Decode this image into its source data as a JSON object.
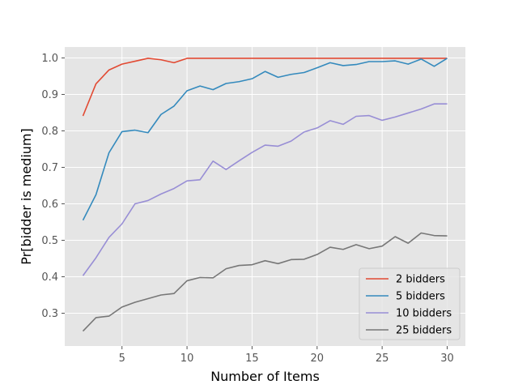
{
  "chart_data": {
    "type": "line",
    "title": "",
    "xlabel": "Number of Items",
    "ylabel": "Pr[bidder is medium]",
    "xlim": [
      0.6,
      31.4
    ],
    "ylim": [
      0.21,
      1.03
    ],
    "xticks": [
      5,
      10,
      15,
      20,
      25,
      30
    ],
    "yticks": [
      0.3,
      0.4,
      0.5,
      0.6,
      0.7,
      0.8,
      0.9,
      1.0
    ],
    "ytick_labels": [
      "0.3",
      "0.4",
      "0.5",
      "0.6",
      "0.7",
      "0.8",
      "0.9",
      "1.0"
    ],
    "grid": true,
    "legend_position": "lower-right",
    "x": [
      2,
      3,
      4,
      5,
      6,
      7,
      8,
      9,
      10,
      11,
      12,
      13,
      14,
      15,
      16,
      17,
      18,
      19,
      20,
      21,
      22,
      23,
      24,
      25,
      26,
      27,
      28,
      29,
      30
    ],
    "series": [
      {
        "name": "2 bidders",
        "color": "#e24a33",
        "values": [
          0.841,
          0.929,
          0.967,
          0.983,
          0.991,
          0.999,
          0.995,
          0.987,
          0.999,
          0.999,
          0.999,
          0.999,
          0.999,
          0.999,
          0.999,
          0.999,
          0.999,
          0.999,
          0.999,
          0.999,
          0.999,
          0.999,
          0.999,
          0.999,
          0.999,
          0.999,
          0.999,
          0.999,
          0.999
        ]
      },
      {
        "name": "5 bidders",
        "color": "#348abd",
        "values": [
          0.555,
          0.625,
          0.74,
          0.798,
          0.802,
          0.795,
          0.845,
          0.868,
          0.91,
          0.923,
          0.913,
          0.93,
          0.935,
          0.943,
          0.963,
          0.947,
          0.955,
          0.96,
          0.973,
          0.987,
          0.979,
          0.982,
          0.99,
          0.99,
          0.992,
          0.983,
          0.997,
          0.977,
          0.999
        ]
      },
      {
        "name": "10 bidders",
        "color": "#988ed5",
        "values": [
          0.403,
          0.452,
          0.508,
          0.545,
          0.6,
          0.609,
          0.627,
          0.642,
          0.663,
          0.666,
          0.717,
          0.694,
          0.718,
          0.741,
          0.761,
          0.758,
          0.772,
          0.797,
          0.808,
          0.828,
          0.818,
          0.84,
          0.842,
          0.829,
          0.838,
          0.849,
          0.86,
          0.874,
          0.874
        ]
      },
      {
        "name": "25 bidders",
        "color": "#777777",
        "values": [
          0.251,
          0.288,
          0.292,
          0.317,
          0.33,
          0.34,
          0.35,
          0.354,
          0.389,
          0.398,
          0.397,
          0.422,
          0.431,
          0.433,
          0.444,
          0.436,
          0.447,
          0.448,
          0.461,
          0.481,
          0.475,
          0.488,
          0.477,
          0.484,
          0.51,
          0.492,
          0.52,
          0.513,
          0.512
        ]
      }
    ]
  }
}
